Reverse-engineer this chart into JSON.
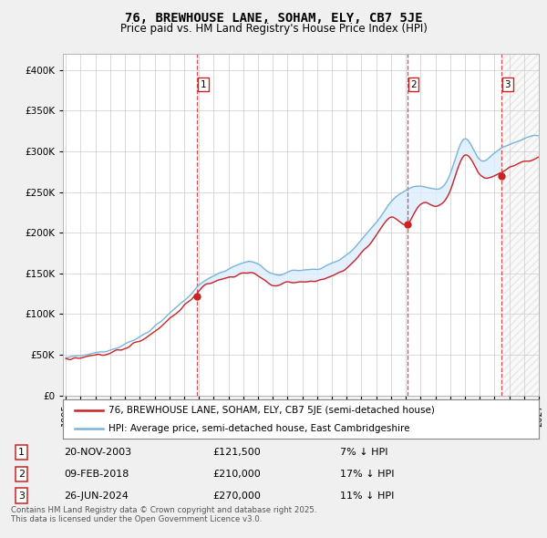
{
  "title": "76, BREWHOUSE LANE, SOHAM, ELY, CB7 5JE",
  "subtitle": "Price paid vs. HM Land Registry's House Price Index (HPI)",
  "hpi_label": "HPI: Average price, semi-detached house, East Cambridgeshire",
  "property_label": "76, BREWHOUSE LANE, SOHAM, ELY, CB7 5JE (semi-detached house)",
  "transactions": [
    {
      "num": 1,
      "date": "20-NOV-2003",
      "price": 121500,
      "year": 2003.89,
      "hpi_diff": "7% ↓ HPI"
    },
    {
      "num": 2,
      "date": "09-FEB-2018",
      "price": 210000,
      "year": 2018.11,
      "hpi_diff": "17% ↓ HPI"
    },
    {
      "num": 3,
      "date": "26-JUN-2024",
      "price": 270000,
      "year": 2024.49,
      "hpi_diff": "11% ↓ HPI"
    }
  ],
  "footnote": "Contains HM Land Registry data © Crown copyright and database right 2025.\nThis data is licensed under the Open Government Licence v3.0.",
  "hpi_color": "#7ab4d8",
  "price_color": "#cc2222",
  "background_color": "#f0f0f0",
  "plot_bg_color": "#ffffff",
  "fill_color": "#ddeeff",
  "hatch_color": "#e8e8e8",
  "ylim": [
    0,
    420000
  ],
  "xlim_start": 1995,
  "xlim_end": 2027,
  "hpi_key_years": [
    1995,
    1996,
    1997,
    1998,
    1999,
    2000,
    2001,
    2002,
    2003,
    2004,
    2005,
    2006,
    2007,
    2008,
    2009,
    2010,
    2011,
    2012,
    2013,
    2014,
    2015,
    2016,
    2017,
    2018,
    2019,
    2020,
    2021,
    2022,
    2023,
    2024,
    2025,
    2026,
    2027
  ],
  "hpi_key_vals": [
    46000,
    48500,
    52000,
    57000,
    63000,
    72000,
    85000,
    100000,
    116000,
    135000,
    148000,
    155000,
    163000,
    162000,
    148000,
    152000,
    154000,
    156000,
    162000,
    173000,
    192000,
    213000,
    238000,
    253000,
    258000,
    253000,
    272000,
    315000,
    290000,
    298000,
    308000,
    316000,
    320000
  ],
  "prop_key_years": [
    1995,
    1996,
    1997,
    1998,
    1999,
    2000,
    2001,
    2002,
    2003,
    2004,
    2005,
    2006,
    2007,
    2008,
    2009,
    2010,
    2011,
    2012,
    2013,
    2014,
    2015,
    2016,
    2017,
    2018,
    2019,
    2020,
    2021,
    2022,
    2023,
    2024,
    2025,
    2026,
    2027
  ],
  "prop_key_vals": [
    43000,
    45500,
    49000,
    53000,
    58000,
    67000,
    79000,
    94000,
    110000,
    128000,
    140000,
    145000,
    150000,
    148000,
    135000,
    138000,
    140000,
    141000,
    147000,
    157000,
    175000,
    196000,
    220000,
    210000,
    235000,
    233000,
    252000,
    295000,
    272000,
    270000,
    280000,
    287000,
    291000
  ]
}
